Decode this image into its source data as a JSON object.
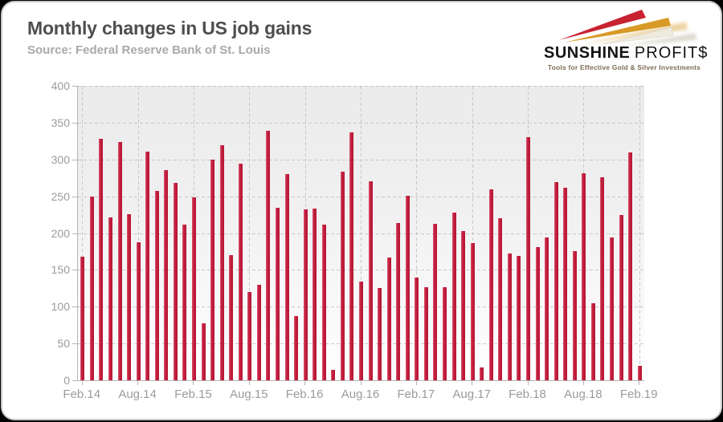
{
  "header": {
    "title": "Monthly changes in US job gains",
    "source": "Source: Federal Reserve Bank of St. Louis"
  },
  "logo": {
    "brand_bold": "SUNSHINE",
    "brand_light": "PROFIT$",
    "tagline": "Tools for Effective Gold & Silver Investments",
    "colors": {
      "red_arrow": "#c72330",
      "gold_arrow": "#d89a26",
      "pale_arrow": "#eeeade"
    }
  },
  "chart_data": {
    "type": "bar",
    "title": "Monthly changes in US job gains",
    "source_note": "Source: Federal Reserve Bank of St. Louis",
    "bar_color": "#c51f3e",
    "grid": "dashed",
    "legend": "none",
    "ylim": [
      0,
      400
    ],
    "yticks": [
      0,
      50,
      100,
      150,
      200,
      250,
      300,
      350,
      400
    ],
    "xtick_every": 6,
    "xtick_labels": [
      "Feb.14",
      "Aug.14",
      "Feb.15",
      "Aug.15",
      "Feb.16",
      "Aug.16",
      "Feb.17",
      "Aug.17",
      "Feb.18",
      "Aug.18",
      "Feb.19"
    ],
    "categories": [
      "Feb.14",
      "Mar.14",
      "Apr.14",
      "May.14",
      "Jun.14",
      "Jul.14",
      "Aug.14",
      "Sep.14",
      "Oct.14",
      "Nov.14",
      "Dec.14",
      "Jan.15",
      "Feb.15",
      "Mar.15",
      "Apr.15",
      "May.15",
      "Jun.15",
      "Jul.15",
      "Aug.15",
      "Sep.15",
      "Oct.15",
      "Nov.15",
      "Dec.15",
      "Jan.16",
      "Feb.16",
      "Mar.16",
      "Apr.16",
      "May.16",
      "Jun.16",
      "Jul.16",
      "Aug.16",
      "Sep.16",
      "Oct.16",
      "Nov.16",
      "Dec.16",
      "Jan.17",
      "Feb.17",
      "Mar.17",
      "Apr.17",
      "May.17",
      "Jun.17",
      "Jul.17",
      "Aug.17",
      "Sep.17",
      "Oct.17",
      "Nov.17",
      "Dec.17",
      "Jan.18",
      "Feb.18",
      "Mar.18",
      "Apr.18",
      "May.18",
      "Jun.18",
      "Jul.18",
      "Aug.18",
      "Sep.18",
      "Oct.18",
      "Nov.18",
      "Dec.18",
      "Jan.19",
      "Feb.19"
    ],
    "values": [
      168,
      250,
      328,
      221,
      324,
      226,
      187,
      311,
      257,
      286,
      268,
      212,
      248,
      77,
      300,
      319,
      170,
      294,
      120,
      130,
      339,
      234,
      280,
      87,
      232,
      233,
      211,
      14,
      283,
      337,
      134,
      270,
      125,
      167,
      214,
      251,
      140,
      126,
      213,
      126,
      228,
      203,
      186,
      18,
      259,
      220,
      172,
      169,
      330,
      181,
      194,
      269,
      262,
      176,
      281,
      105,
      276,
      194,
      225,
      310,
      20
    ]
  }
}
